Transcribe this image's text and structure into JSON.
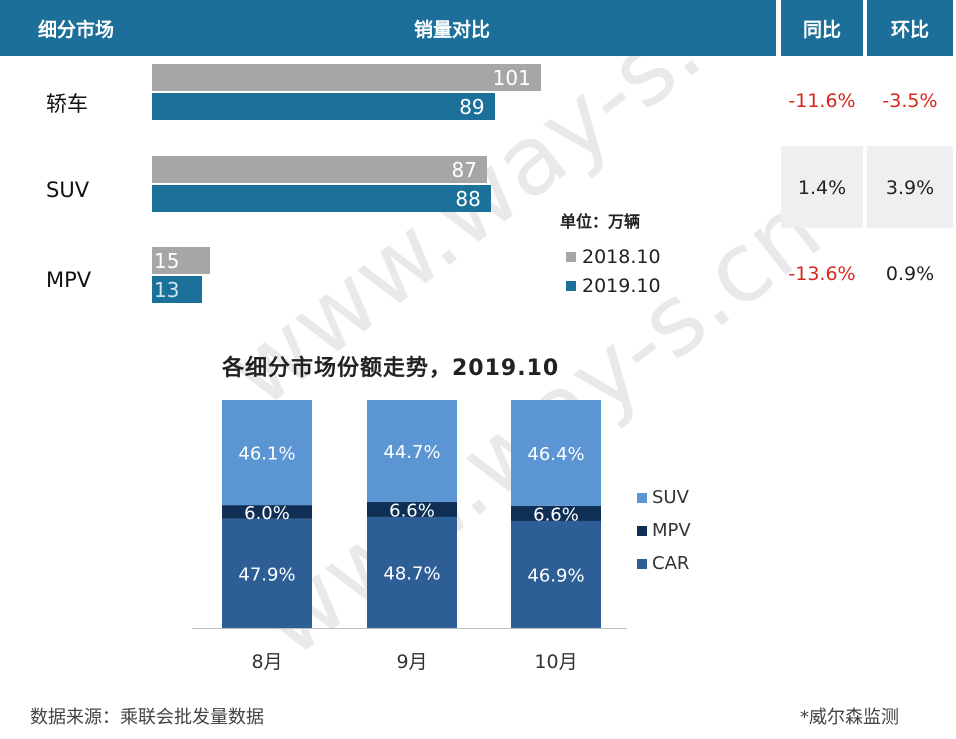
{
  "header": {
    "segment": "细分市场",
    "sales": "销量对比",
    "yoy": "同比",
    "mom": "环比"
  },
  "unit_label": "单位：万辆",
  "legend_top": [
    {
      "label": "2018.10",
      "color": "#a6a6a8"
    },
    {
      "label": "2019.10",
      "color": "#1b7199"
    }
  ],
  "rows": [
    {
      "segment": "轿车",
      "v2018": 101,
      "v2019": 89,
      "yoy": "-11.6%",
      "mom": "-3.5%",
      "yoy_neg": true,
      "mom_neg": true
    },
    {
      "segment": "SUV",
      "v2018": 87,
      "v2019": 88,
      "yoy": "1.4%",
      "mom": "3.9%",
      "yoy_neg": false,
      "mom_neg": false
    },
    {
      "segment": "MPV",
      "v2018": 15,
      "v2019": 13,
      "yoy": "-13.6%",
      "mom": "0.9%",
      "yoy_neg": true,
      "mom_neg": false
    }
  ],
  "chart_data": {
    "type": "bar",
    "stacked": true,
    "title": "各细分市场份额走势，2019.10",
    "categories": [
      "8月",
      "9月",
      "10月"
    ],
    "series": [
      {
        "name": "CAR",
        "values": [
          47.9,
          48.7,
          46.9
        ],
        "labels": [
          "47.9%",
          "48.7%",
          "46.9%"
        ],
        "color": "#2d5f96"
      },
      {
        "name": "MPV",
        "values": [
          6.0,
          6.6,
          6.6
        ],
        "labels": [
          "6.0%",
          "6.6%",
          "6.6%"
        ],
        "color": "#0f2f55"
      },
      {
        "name": "SUV",
        "values": [
          46.1,
          44.7,
          46.4
        ],
        "labels": [
          "46.1%",
          "44.7%",
          "46.4%"
        ],
        "color": "#5b95d3"
      }
    ],
    "legend_order": [
      "SUV",
      "MPV",
      "CAR"
    ]
  },
  "footer": {
    "source": "数据来源：乘联会批发量数据",
    "credit": "*威尔森监测"
  },
  "watermark": "www.way-s.cn"
}
